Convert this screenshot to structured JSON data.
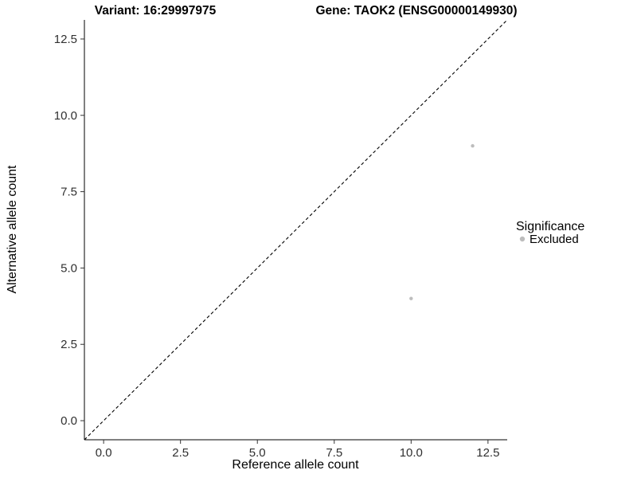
{
  "chart_data": {
    "type": "scatter",
    "title_left": "Variant: 16:29997975",
    "title_right": "Gene: TAOK2 (ENSG00000149930)",
    "xlabel": "Reference allele count",
    "ylabel": "Alternative allele count",
    "xlim": [
      -0.625,
      13.125
    ],
    "ylim": [
      -0.625,
      13.125
    ],
    "xticks": [
      0,
      2.5,
      5,
      7.5,
      10,
      12.5
    ],
    "yticks": [
      0,
      2.5,
      5,
      7.5,
      10,
      12.5
    ],
    "grid": false,
    "background": "#ffffff",
    "identity_line": {
      "style": "dashed",
      "color": "#000000",
      "equation": "y = x"
    },
    "points": [
      {
        "x": 12,
        "y": 9,
        "series": "Excluded"
      },
      {
        "x": 10,
        "y": 4,
        "series": "Excluded"
      }
    ],
    "point_color": "#bdbdbd",
    "legend": {
      "title": "Significance",
      "position": "right",
      "entries": [
        {
          "label": "Excluded",
          "color": "#bdbdbd"
        }
      ]
    }
  }
}
